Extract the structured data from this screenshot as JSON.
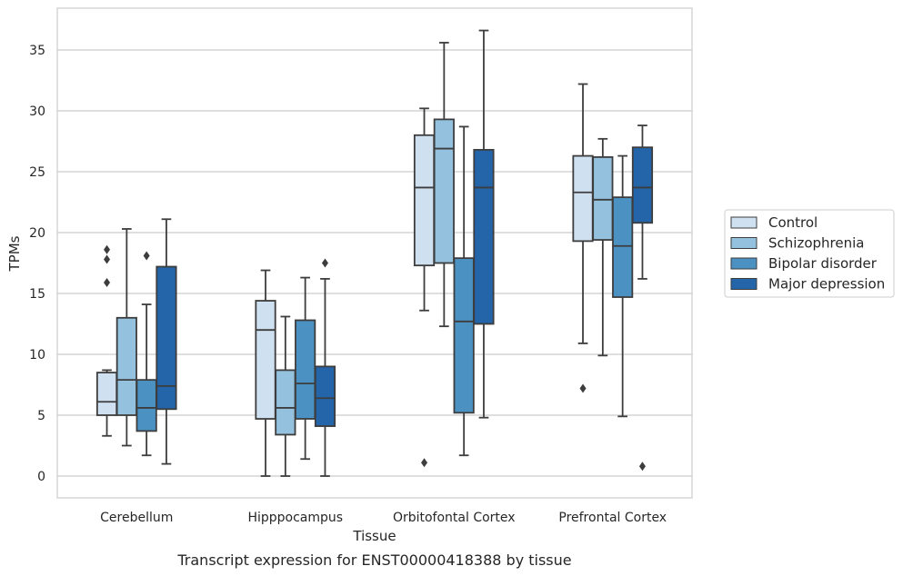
{
  "caption": "Transcript expression for ENST00000418388 by tissue",
  "chart_data": {
    "type": "box",
    "xlabel": "Tissue",
    "ylabel": "TPMs",
    "ylim": [
      -1.8,
      38.6
    ],
    "yticks": [
      0,
      5,
      10,
      15,
      20,
      25,
      30,
      35
    ],
    "grid": "horizontal",
    "legend_position": "right",
    "categories": [
      "Cerebellum",
      "Hipppocampus",
      "Orbitofontal Cortex",
      "Prefrontal Cortex"
    ],
    "series": [
      {
        "name": "Control",
        "color": "#cfe0f1",
        "boxes": [
          {
            "whislo": 3.3,
            "q1": 5.0,
            "med": 6.1,
            "q3": 8.5,
            "whishi": 8.7,
            "fliers": [
              15.9,
              17.8,
              18.6
            ]
          },
          {
            "whislo": 0.0,
            "q1": 4.7,
            "med": 12.0,
            "q3": 14.4,
            "whishi": 16.9,
            "fliers": []
          },
          {
            "whislo": 13.6,
            "q1": 17.3,
            "med": 23.7,
            "q3": 28.0,
            "whishi": 30.2,
            "fliers": [
              1.1
            ]
          },
          {
            "whislo": 10.9,
            "q1": 19.3,
            "med": 23.3,
            "q3": 26.3,
            "whishi": 32.2,
            "fliers": [
              7.2
            ]
          }
        ]
      },
      {
        "name": "Schizophrenia",
        "color": "#93c1de",
        "boxes": [
          {
            "whislo": 2.5,
            "q1": 5.0,
            "med": 7.9,
            "q3": 13.0,
            "whishi": 20.3,
            "fliers": []
          },
          {
            "whislo": 0.0,
            "q1": 3.4,
            "med": 5.6,
            "q3": 8.7,
            "whishi": 13.1,
            "fliers": []
          },
          {
            "whislo": 12.3,
            "q1": 17.5,
            "med": 26.9,
            "q3": 29.3,
            "whishi": 35.6,
            "fliers": []
          },
          {
            "whislo": 9.9,
            "q1": 19.4,
            "med": 22.7,
            "q3": 26.2,
            "whishi": 27.7,
            "fliers": []
          }
        ]
      },
      {
        "name": "Bipolar disorder",
        "color": "#4b91c2",
        "boxes": [
          {
            "whislo": 1.7,
            "q1": 3.7,
            "med": 5.6,
            "q3": 7.9,
            "whishi": 14.1,
            "fliers": [
              18.1
            ]
          },
          {
            "whislo": 1.4,
            "q1": 4.7,
            "med": 7.6,
            "q3": 12.8,
            "whishi": 16.3,
            "fliers": []
          },
          {
            "whislo": 1.7,
            "q1": 5.2,
            "med": 12.7,
            "q3": 17.9,
            "whishi": 28.7,
            "fliers": []
          },
          {
            "whislo": 4.9,
            "q1": 14.7,
            "med": 18.9,
            "q3": 22.9,
            "whishi": 26.3,
            "fliers": []
          }
        ]
      },
      {
        "name": "Major depression",
        "color": "#2464a8",
        "boxes": [
          {
            "whislo": 1.0,
            "q1": 5.5,
            "med": 7.4,
            "q3": 17.2,
            "whishi": 21.1,
            "fliers": []
          },
          {
            "whislo": 0.0,
            "q1": 4.1,
            "med": 6.4,
            "q3": 9.0,
            "whishi": 16.2,
            "fliers": [
              17.5
            ]
          },
          {
            "whislo": 4.8,
            "q1": 12.5,
            "med": 23.7,
            "q3": 26.8,
            "whishi": 36.6,
            "fliers": []
          },
          {
            "whislo": 16.2,
            "q1": 20.8,
            "med": 23.7,
            "q3": 27.0,
            "whishi": 28.8,
            "fliers": [
              0.8
            ]
          }
        ]
      }
    ]
  }
}
